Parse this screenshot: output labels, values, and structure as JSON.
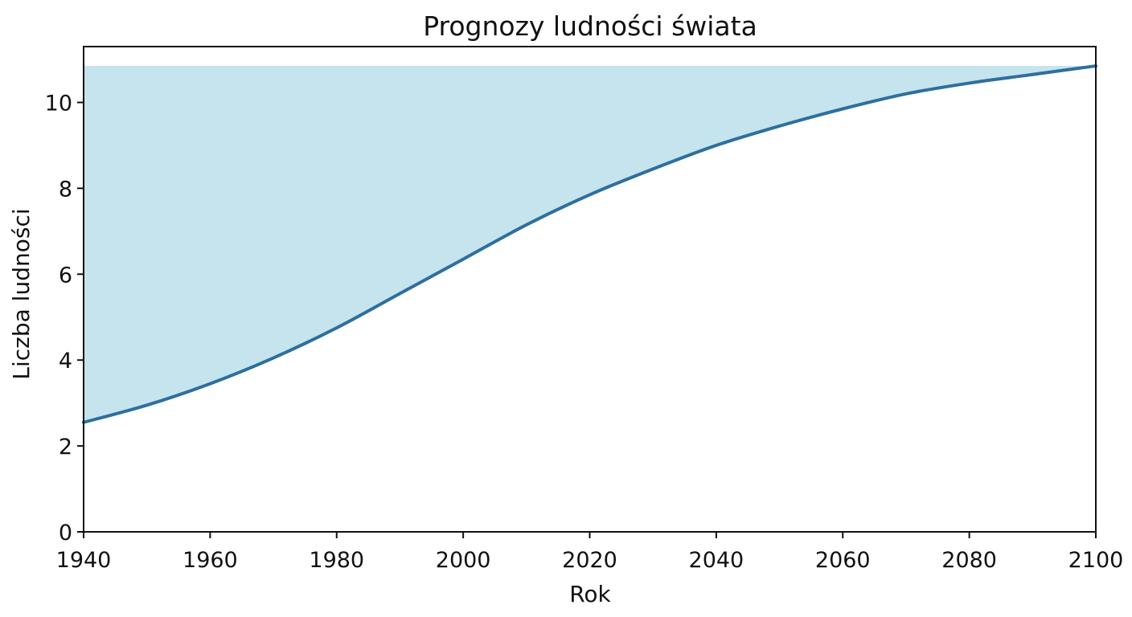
{
  "chart_data": {
    "type": "area",
    "title": "Prognozy ludności świata",
    "xlabel": "Rok",
    "ylabel": "Liczba ludności",
    "xlim": [
      1940,
      2100
    ],
    "ylim": [
      0,
      11.3
    ],
    "x_ticks": [
      1940,
      1960,
      1980,
      2000,
      2020,
      2040,
      2060,
      2080,
      2100
    ],
    "y_ticks": [
      0,
      2,
      4,
      6,
      8,
      10
    ],
    "grid": false,
    "fill_upper_bound": 10.85,
    "series": [
      {
        "x": [
          1940,
          1950,
          1960,
          1970,
          1980,
          1990,
          2000,
          2010,
          2020,
          2030,
          2040,
          2050,
          2060,
          2070,
          2080,
          2090,
          2100
        ],
        "values": [
          2.55,
          2.95,
          3.45,
          4.05,
          4.75,
          5.55,
          6.35,
          7.15,
          7.85,
          8.45,
          9.0,
          9.45,
          9.85,
          10.2,
          10.45,
          10.65,
          10.85
        ]
      }
    ],
    "colors": {
      "line": "#2e6f9e",
      "fill": "#add8e6",
      "fill_opacity": 0.7
    }
  }
}
